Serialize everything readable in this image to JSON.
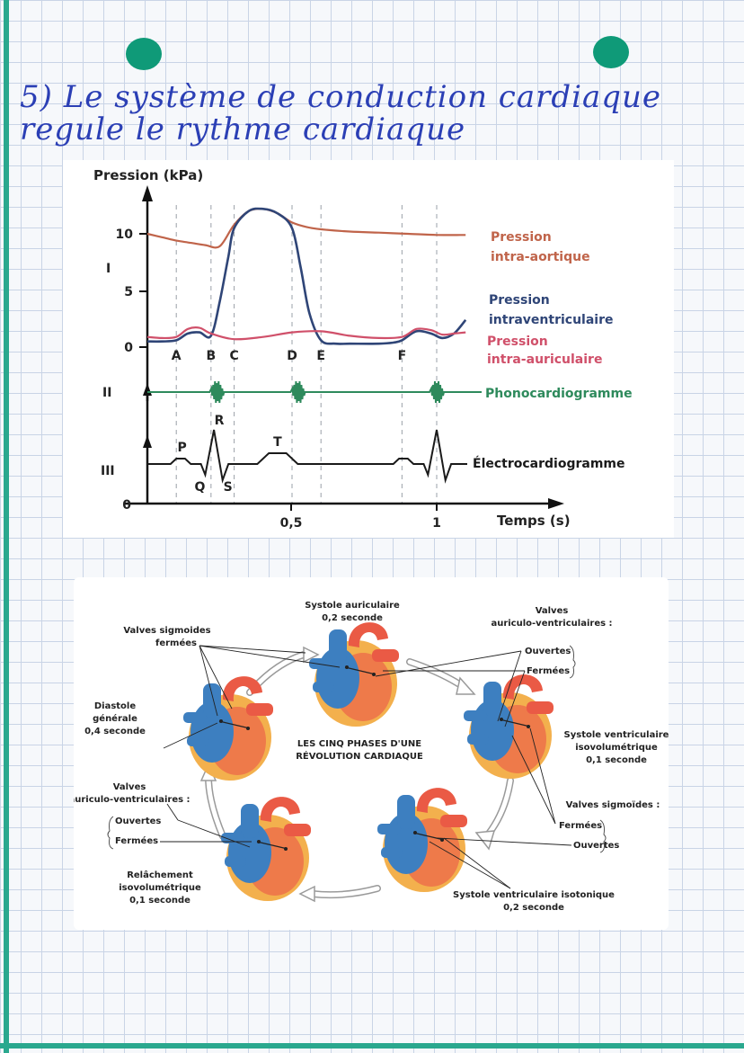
{
  "title": {
    "line1": "5) Le système de conduction cardiaque",
    "line2": "regule le rythme cardiaque"
  },
  "colors": {
    "accent": "#2aa88e",
    "hole": "#0f9a78",
    "ink": "#2b3fb5",
    "aortic": "#c0644a",
    "ventricular": "#2f4577",
    "atrial": "#d0506a",
    "phono": "#2e8a5c",
    "ecg": "#1a1a1a"
  },
  "chart_data": {
    "type": "line",
    "ylabel": "Pression (kPa)",
    "xlabel": "Temps (s)",
    "xlim": [
      0,
      1.1
    ],
    "ylim": [
      0,
      13
    ],
    "x_ticks": [
      "0,5",
      "1"
    ],
    "y_ticks": [
      "0",
      "5",
      "10"
    ],
    "y_origin_label": "0",
    "section_labels": [
      "I",
      "II",
      "III"
    ],
    "phase_markers": [
      {
        "label": "A",
        "x": 0.1
      },
      {
        "label": "B",
        "x": 0.22
      },
      {
        "label": "C",
        "x": 0.3
      },
      {
        "label": "D",
        "x": 0.5
      },
      {
        "label": "E",
        "x": 0.6
      },
      {
        "label": "F",
        "x": 0.88
      }
    ],
    "phase_lines_x": [
      0.1,
      0.22,
      0.3,
      0.5,
      0.6,
      0.88,
      1.0
    ],
    "series": [
      {
        "name": "Pression intra-aortique",
        "label_lines": [
          "Pression",
          "intra-aortique"
        ],
        "color": "#c0644a",
        "x": [
          0,
          0.05,
          0.1,
          0.15,
          0.2,
          0.25,
          0.3,
          0.35,
          0.4,
          0.45,
          0.5,
          0.55,
          0.6,
          0.7,
          0.8,
          0.9,
          1.0,
          1.1
        ],
        "y": [
          10,
          9.7,
          9.4,
          9.2,
          9.0,
          8.9,
          10.8,
          12.0,
          12.2,
          11.8,
          11.0,
          10.6,
          10.4,
          10.2,
          10.1,
          10.0,
          9.9,
          9.9
        ]
      },
      {
        "name": "Pression intraventriculaire",
        "label_lines": [
          "Pression",
          "intraventriculaire"
        ],
        "color": "#2f4577",
        "x": [
          0,
          0.05,
          0.1,
          0.14,
          0.18,
          0.22,
          0.25,
          0.28,
          0.3,
          0.35,
          0.4,
          0.45,
          0.5,
          0.53,
          0.56,
          0.6,
          0.65,
          0.7,
          0.8,
          0.85,
          0.88,
          0.93,
          0.98,
          1.02,
          1.06,
          1.1
        ],
        "y": [
          0.5,
          0.5,
          0.6,
          1.2,
          1.3,
          1.0,
          4.0,
          8.0,
          10.5,
          12.0,
          12.2,
          11.8,
          10.5,
          7.0,
          3.0,
          0.6,
          0.3,
          0.3,
          0.3,
          0.4,
          0.6,
          1.4,
          1.2,
          0.8,
          1.2,
          2.4
        ]
      },
      {
        "name": "Pression intra-auriculaire",
        "label_lines": [
          "Pression",
          "intra-auriculaire"
        ],
        "color": "#d0506a",
        "x": [
          0,
          0.05,
          0.1,
          0.14,
          0.18,
          0.22,
          0.3,
          0.4,
          0.5,
          0.6,
          0.7,
          0.8,
          0.88,
          0.93,
          0.98,
          1.02,
          1.06,
          1.1
        ],
        "y": [
          0.9,
          0.8,
          0.9,
          1.6,
          1.7,
          1.2,
          0.7,
          0.9,
          1.3,
          1.4,
          1.0,
          0.8,
          0.9,
          1.6,
          1.5,
          1.1,
          1.2,
          1.3
        ]
      }
    ],
    "phono_label": "Phonocardiogramme",
    "phono_bursts_x": [
      0.24,
      0.52,
      1.0
    ],
    "ecg_label": "Électrocardiogramme",
    "ecg_waves": [
      {
        "label": "P",
        "x": 0.12
      },
      {
        "label": "Q",
        "x": 0.2
      },
      {
        "label": "R",
        "x": 0.23
      },
      {
        "label": "S",
        "x": 0.26
      },
      {
        "label": "T",
        "x": 0.45
      }
    ]
  },
  "cycle": {
    "center_title_line1": "LES CINQ PHASES D'UNE",
    "center_title_line2": "RÉVOLUTION CARDIAQUE",
    "phase_systole_auriculaire": {
      "name": "Systole auriculaire",
      "duration": "0,2 seconde"
    },
    "phase_systole_isovolumetrique": {
      "name_line1": "Systole ventriculaire",
      "name_line2": "isovolumétrique",
      "duration": "0,1 seconde"
    },
    "phase_systole_isotonique": {
      "name": "Systole ventriculaire isotonique",
      "duration": "0,2 seconde"
    },
    "phase_relachement": {
      "name_line1": "Relâchement",
      "name_line2": "isovolumétrique",
      "duration": "0,1 seconde"
    },
    "phase_diastole": {
      "name_line1": "Diastole",
      "name_line2": "générale",
      "duration": "0,4 seconde"
    },
    "valves_sigmoides_fermees_line1": "Valves sigmoides",
    "valves_sigmoides_fermees_line2": "fermées",
    "valves_av_right_line1": "Valves",
    "valves_av_right_line2": "auriculo-ventriculaires :",
    "valves_av_right_ouvertes": "Ouvertes",
    "valves_av_right_fermees": "Fermées",
    "valves_sig_right_title": "Valves sigmoïdes :",
    "valves_sig_right_fermees": "Fermées",
    "valves_sig_right_ouvertes": "Ouvertes",
    "valves_av_left_line1": "Valves",
    "valves_av_left_line2": "auriculo-ventriculaires :",
    "valves_av_left_ouvertes": "Ouvertes",
    "valves_av_left_fermees": "Fermées"
  }
}
